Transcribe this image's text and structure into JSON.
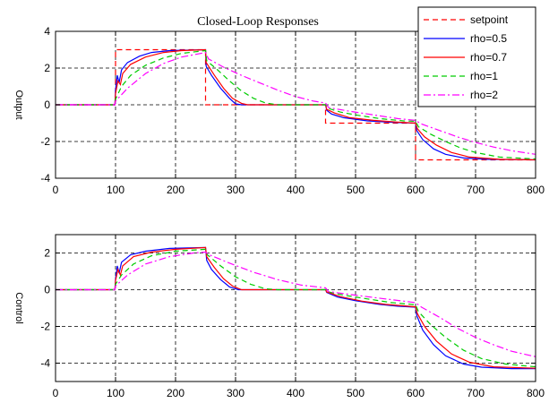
{
  "chart_data": [
    {
      "type": "line",
      "title": "Closed-Loop Responses",
      "xlabel": "",
      "ylabel": "Output",
      "xlim": [
        0,
        800
      ],
      "ylim": [
        -4,
        4
      ],
      "xticks": [
        "0",
        "100",
        "200",
        "300",
        "400",
        "500",
        "600",
        "700",
        "800"
      ],
      "yticks": [
        "-4",
        "-2",
        "0",
        "2",
        "4"
      ],
      "grid": true,
      "legend_position": "top-right",
      "series": [
        {
          "name": "setpoint",
          "color": "#ff0000",
          "dash": "dashed",
          "points": [
            [
              0,
              0
            ],
            [
              100,
              0
            ],
            [
              100,
              3
            ],
            [
              250,
              3
            ],
            [
              250,
              0
            ],
            [
              450,
              0
            ],
            [
              450,
              -1
            ],
            [
              600,
              -1
            ],
            [
              600,
              -3
            ],
            [
              800,
              -3
            ]
          ]
        },
        {
          "name": "rho=0.5",
          "color": "#0000ff",
          "dash": "solid",
          "points": [
            [
              0,
              0
            ],
            [
              99,
              0
            ],
            [
              100,
              0.8
            ],
            [
              103,
              1.6
            ],
            [
              106,
              1.2
            ],
            [
              110,
              1.9
            ],
            [
              120,
              2.3
            ],
            [
              140,
              2.65
            ],
            [
              160,
              2.85
            ],
            [
              190,
              2.95
            ],
            [
              250,
              3.0
            ],
            [
              251,
              2.1
            ],
            [
              260,
              1.6
            ],
            [
              275,
              0.9
            ],
            [
              290,
              0.35
            ],
            [
              300,
              0.05
            ],
            [
              310,
              0
            ],
            [
              450,
              0
            ],
            [
              452,
              -0.3
            ],
            [
              460,
              -0.5
            ],
            [
              480,
              -0.7
            ],
            [
              520,
              -0.88
            ],
            [
              560,
              -0.95
            ],
            [
              600,
              -1.0
            ],
            [
              602,
              -1.4
            ],
            [
              612,
              -1.9
            ],
            [
              630,
              -2.4
            ],
            [
              650,
              -2.7
            ],
            [
              680,
              -2.9
            ],
            [
              720,
              -2.97
            ],
            [
              800,
              -3.0
            ]
          ]
        },
        {
          "name": "rho=0.7",
          "color": "#ff0000",
          "dash": "solid",
          "points": [
            [
              0,
              0
            ],
            [
              99,
              0
            ],
            [
              100,
              0.6
            ],
            [
              104,
              1.3
            ],
            [
              108,
              1.1
            ],
            [
              112,
              1.7
            ],
            [
              125,
              2.2
            ],
            [
              150,
              2.6
            ],
            [
              180,
              2.85
            ],
            [
              210,
              2.95
            ],
            [
              250,
              3.0
            ],
            [
              251,
              2.3
            ],
            [
              265,
              1.6
            ],
            [
              280,
              0.9
            ],
            [
              295,
              0.35
            ],
            [
              310,
              0.08
            ],
            [
              320,
              0
            ],
            [
              450,
              0
            ],
            [
              452,
              -0.25
            ],
            [
              465,
              -0.45
            ],
            [
              490,
              -0.7
            ],
            [
              530,
              -0.85
            ],
            [
              570,
              -0.94
            ],
            [
              600,
              -1.0
            ],
            [
              603,
              -1.3
            ],
            [
              615,
              -1.75
            ],
            [
              635,
              -2.2
            ],
            [
              660,
              -2.6
            ],
            [
              690,
              -2.85
            ],
            [
              740,
              -2.97
            ],
            [
              800,
              -3.0
            ]
          ]
        },
        {
          "name": "rho=1",
          "color": "#00cc00",
          "dash": "dashed",
          "points": [
            [
              0,
              0
            ],
            [
              99,
              0
            ],
            [
              100,
              0.3
            ],
            [
              110,
              1.0
            ],
            [
              125,
              1.6
            ],
            [
              150,
              2.15
            ],
            [
              180,
              2.55
            ],
            [
              210,
              2.8
            ],
            [
              250,
              2.95
            ],
            [
              252,
              2.4
            ],
            [
              270,
              1.9
            ],
            [
              290,
              1.3
            ],
            [
              310,
              0.75
            ],
            [
              330,
              0.35
            ],
            [
              350,
              0.1
            ],
            [
              370,
              0
            ],
            [
              450,
              0
            ],
            [
              455,
              -0.2
            ],
            [
              475,
              -0.4
            ],
            [
              500,
              -0.55
            ],
            [
              540,
              -0.75
            ],
            [
              580,
              -0.88
            ],
            [
              600,
              -0.9
            ],
            [
              605,
              -1.2
            ],
            [
              625,
              -1.6
            ],
            [
              650,
              -2.0
            ],
            [
              675,
              -2.35
            ],
            [
              700,
              -2.6
            ],
            [
              740,
              -2.85
            ],
            [
              800,
              -2.95
            ]
          ]
        },
        {
          "name": "rho=2",
          "color": "#ff00ff",
          "dash": "dashdot",
          "points": [
            [
              0,
              0
            ],
            [
              99,
              0
            ],
            [
              100,
              0.2
            ],
            [
              120,
              0.9
            ],
            [
              150,
              1.7
            ],
            [
              180,
              2.25
            ],
            [
              210,
              2.6
            ],
            [
              250,
              2.85
            ],
            [
              255,
              2.5
            ],
            [
              280,
              2.05
            ],
            [
              310,
              1.6
            ],
            [
              340,
              1.2
            ],
            [
              370,
              0.8
            ],
            [
              400,
              0.45
            ],
            [
              430,
              0.2
            ],
            [
              450,
              0.1
            ],
            [
              455,
              -0.15
            ],
            [
              490,
              -0.35
            ],
            [
              530,
              -0.55
            ],
            [
              570,
              -0.75
            ],
            [
              600,
              -0.85
            ],
            [
              610,
              -1.05
            ],
            [
              640,
              -1.4
            ],
            [
              670,
              -1.75
            ],
            [
              700,
              -2.05
            ],
            [
              730,
              -2.3
            ],
            [
              760,
              -2.5
            ],
            [
              800,
              -2.7
            ]
          ]
        }
      ]
    },
    {
      "type": "line",
      "title": "",
      "xlabel": "",
      "ylabel": "Control",
      "xlim": [
        0,
        800
      ],
      "ylim": [
        -5,
        3
      ],
      "xticks": [
        "0",
        "100",
        "200",
        "300",
        "400",
        "500",
        "600",
        "700",
        "800"
      ],
      "yticks": [
        "-4",
        "-2",
        "0",
        "2"
      ],
      "grid": true,
      "series": [
        {
          "name": "rho=0.5",
          "color": "#0000ff",
          "dash": "solid",
          "points": [
            [
              0,
              0
            ],
            [
              99,
              0
            ],
            [
              100,
              0.6
            ],
            [
              103,
              1.3
            ],
            [
              106,
              0.9
            ],
            [
              110,
              1.5
            ],
            [
              125,
              1.9
            ],
            [
              150,
              2.1
            ],
            [
              190,
              2.25
            ],
            [
              250,
              2.3
            ],
            [
              252,
              1.6
            ],
            [
              260,
              1.1
            ],
            [
              275,
              0.55
            ],
            [
              290,
              0.15
            ],
            [
              305,
              0
            ],
            [
              450,
              0
            ],
            [
              452,
              -0.15
            ],
            [
              470,
              -0.4
            ],
            [
              500,
              -0.6
            ],
            [
              540,
              -0.8
            ],
            [
              570,
              -0.9
            ],
            [
              600,
              -0.95
            ],
            [
              602,
              -1.4
            ],
            [
              612,
              -2.2
            ],
            [
              630,
              -3.0
            ],
            [
              650,
              -3.6
            ],
            [
              680,
              -4.05
            ],
            [
              710,
              -4.22
            ],
            [
              760,
              -4.3
            ],
            [
              800,
              -4.3
            ]
          ]
        },
        {
          "name": "rho=0.7",
          "color": "#ff0000",
          "dash": "solid",
          "points": [
            [
              0,
              0
            ],
            [
              99,
              0
            ],
            [
              100,
              0.5
            ],
            [
              104,
              1.1
            ],
            [
              108,
              0.8
            ],
            [
              112,
              1.3
            ],
            [
              130,
              1.8
            ],
            [
              160,
              2.05
            ],
            [
              200,
              2.2
            ],
            [
              250,
              2.3
            ],
            [
              252,
              1.8
            ],
            [
              265,
              1.2
            ],
            [
              280,
              0.6
            ],
            [
              295,
              0.2
            ],
            [
              310,
              0
            ],
            [
              450,
              0
            ],
            [
              452,
              -0.12
            ],
            [
              475,
              -0.38
            ],
            [
              510,
              -0.62
            ],
            [
              550,
              -0.8
            ],
            [
              600,
              -0.93
            ],
            [
              603,
              -1.3
            ],
            [
              615,
              -2.0
            ],
            [
              635,
              -2.8
            ],
            [
              660,
              -3.5
            ],
            [
              690,
              -3.95
            ],
            [
              730,
              -4.2
            ],
            [
              800,
              -4.28
            ]
          ]
        },
        {
          "name": "rho=1",
          "color": "#00cc00",
          "dash": "dashed",
          "points": [
            [
              0,
              0
            ],
            [
              99,
              0
            ],
            [
              100,
              0.3
            ],
            [
              110,
              0.8
            ],
            [
              130,
              1.4
            ],
            [
              160,
              1.85
            ],
            [
              200,
              2.1
            ],
            [
              250,
              2.2
            ],
            [
              253,
              1.9
            ],
            [
              275,
              1.3
            ],
            [
              300,
              0.7
            ],
            [
              325,
              0.3
            ],
            [
              350,
              0.05
            ],
            [
              370,
              0
            ],
            [
              450,
              0
            ],
            [
              455,
              -0.12
            ],
            [
              480,
              -0.3
            ],
            [
              520,
              -0.5
            ],
            [
              560,
              -0.7
            ],
            [
              600,
              -0.82
            ],
            [
              605,
              -1.2
            ],
            [
              625,
              -1.9
            ],
            [
              650,
              -2.6
            ],
            [
              680,
              -3.3
            ],
            [
              710,
              -3.75
            ],
            [
              750,
              -4.05
            ],
            [
              800,
              -4.2
            ]
          ]
        },
        {
          "name": "rho=2",
          "color": "#ff00ff",
          "dash": "dashdot",
          "points": [
            [
              0,
              0
            ],
            [
              99,
              0
            ],
            [
              100,
              0.2
            ],
            [
              120,
              0.8
            ],
            [
              150,
              1.4
            ],
            [
              190,
              1.8
            ],
            [
              230,
              2.0
            ],
            [
              250,
              2.05
            ],
            [
              256,
              1.9
            ],
            [
              290,
              1.45
            ],
            [
              330,
              0.95
            ],
            [
              370,
              0.55
            ],
            [
              410,
              0.25
            ],
            [
              450,
              0.1
            ],
            [
              455,
              -0.1
            ],
            [
              500,
              -0.3
            ],
            [
              550,
              -0.5
            ],
            [
              600,
              -0.7
            ],
            [
              610,
              -0.95
            ],
            [
              640,
              -1.5
            ],
            [
              670,
              -2.1
            ],
            [
              700,
              -2.6
            ],
            [
              730,
              -3.0
            ],
            [
              760,
              -3.35
            ],
            [
              800,
              -3.65
            ]
          ]
        }
      ]
    }
  ]
}
